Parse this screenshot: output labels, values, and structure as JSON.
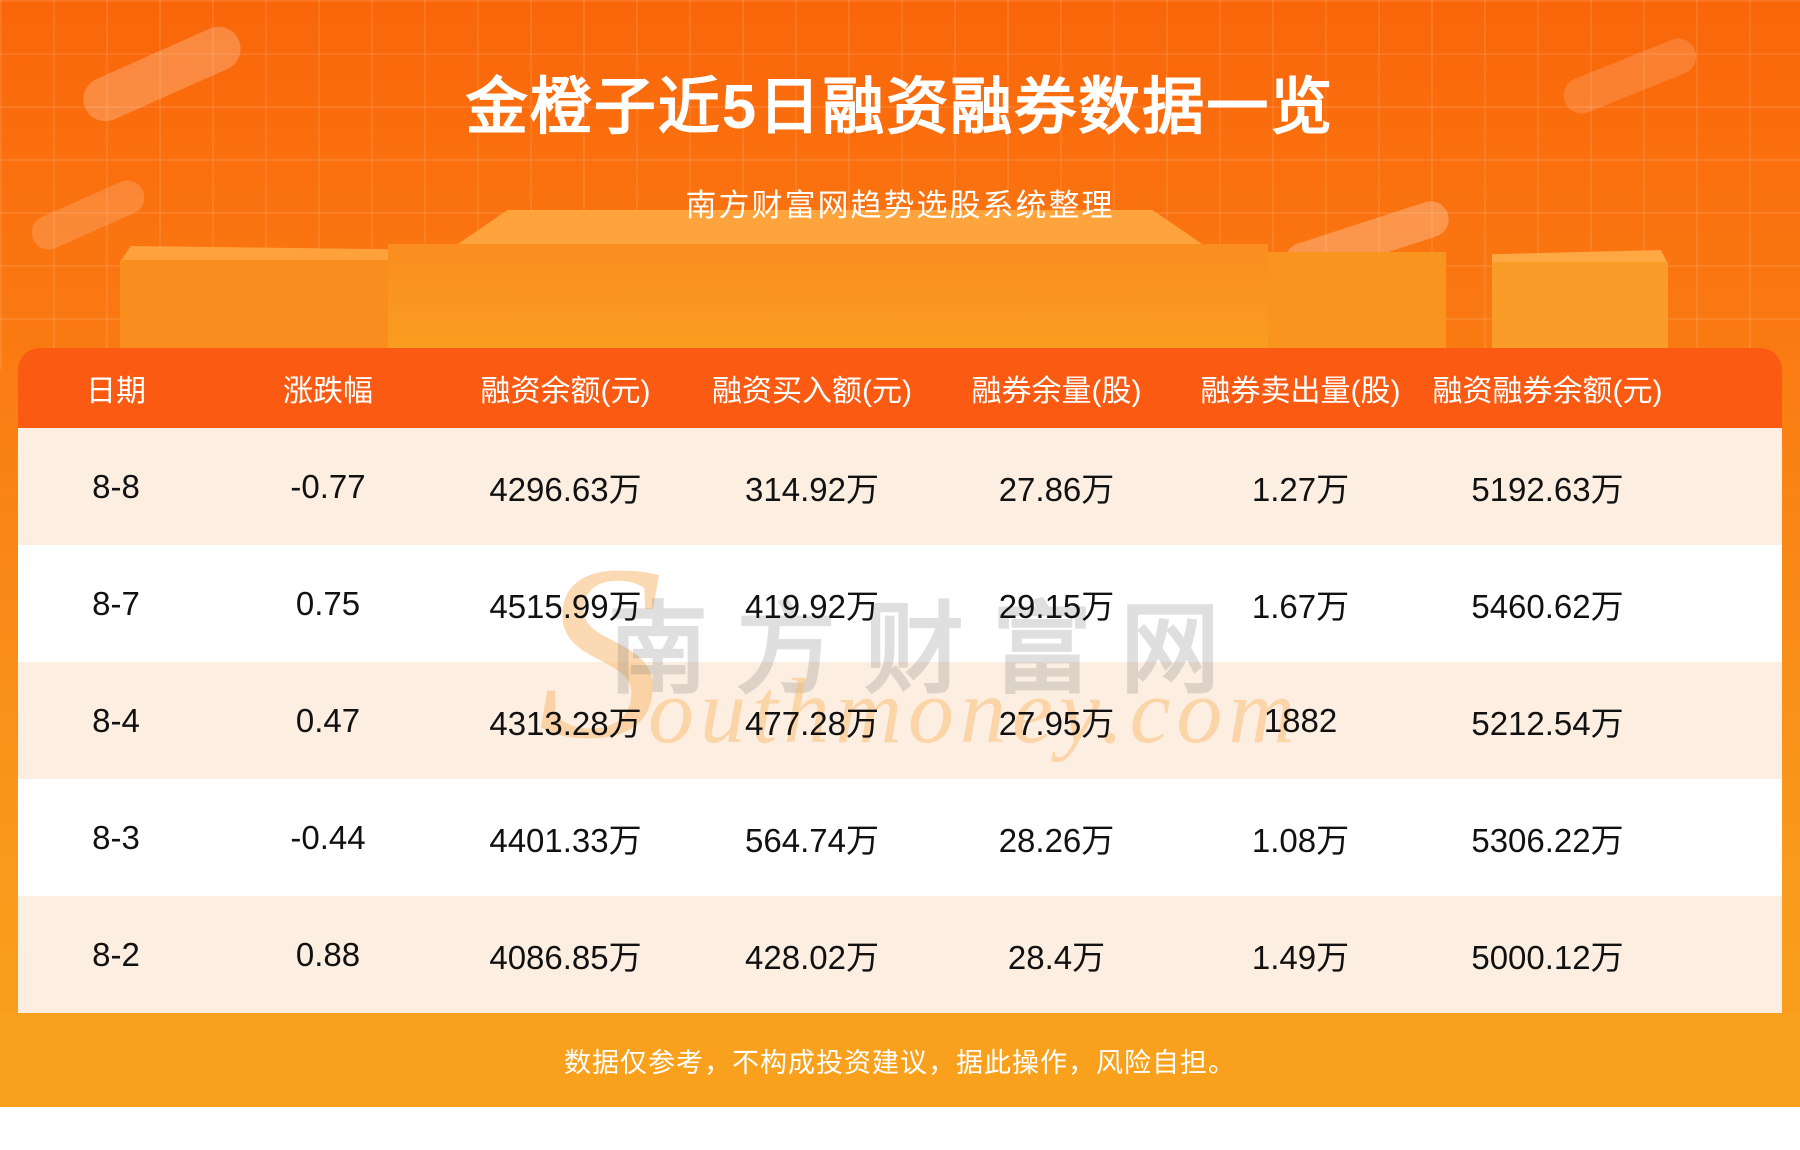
{
  "page": {
    "title": "金橙子近5日融资融券数据一览",
    "subtitle": "南方财富网趋势选股系统整理",
    "disclaimer": "数据仅参考，不构成投资建议，据此操作，风险自担。"
  },
  "watermark": {
    "big_s": "S",
    "cn_text": "南方财富网",
    "script_text": "outhmoney.com"
  },
  "colors": {
    "hero-top": "#f9660a",
    "hero-bottom": "#f9a11d",
    "header-bar": "#fa5a11",
    "row-alt": "#fcefe2",
    "footer-band": "#f9a11d"
  },
  "table": {
    "columns": [
      "日期",
      "涨跌幅",
      "融资余额(元)",
      "融资买入额(元)",
      "融券余量(股)",
      "融券卖出量(股)",
      "融资融券余额(元)"
    ],
    "rows": [
      [
        "8-8",
        "-0.77",
        "4296.63万",
        "314.92万",
        "27.86万",
        "1.27万",
        "5192.63万"
      ],
      [
        "8-7",
        "0.75",
        "4515.99万",
        "419.92万",
        "29.15万",
        "1.67万",
        "5460.62万"
      ],
      [
        "8-4",
        "0.47",
        "4313.28万",
        "477.28万",
        "27.95万",
        "1882",
        "5212.54万"
      ],
      [
        "8-3",
        "-0.44",
        "4401.33万",
        "564.74万",
        "28.26万",
        "1.08万",
        "5306.22万"
      ],
      [
        "8-2",
        "0.88",
        "4086.85万",
        "428.02万",
        "28.4万",
        "1.49万",
        "5000.12万"
      ]
    ]
  },
  "chart_data": {
    "type": "table",
    "title": "金橙子近5日融资融券数据一览",
    "source": "南方财富网趋势选股系统整理",
    "columns": [
      "日期",
      "涨跌幅",
      "融资余额(元)",
      "融资买入额(元)",
      "融券余量(股)",
      "融券卖出量(股)",
      "融资融券余额(元)"
    ],
    "rows": [
      [
        "8-8",
        -0.77,
        "4296.63万",
        "314.92万",
        "27.86万",
        "1.27万",
        "5192.63万"
      ],
      [
        "8-7",
        0.75,
        "4515.99万",
        "419.92万",
        "29.15万",
        "1.67万",
        "5460.62万"
      ],
      [
        "8-4",
        0.47,
        "4313.28万",
        "477.28万",
        "27.95万",
        "1882",
        "5212.54万"
      ],
      [
        "8-3",
        -0.44,
        "4401.33万",
        "564.74万",
        "28.26万",
        "1.08万",
        "5306.22万"
      ],
      [
        "8-2",
        0.88,
        "4086.85万",
        "428.02万",
        "28.4万",
        "1.49万",
        "5000.12万"
      ]
    ]
  }
}
